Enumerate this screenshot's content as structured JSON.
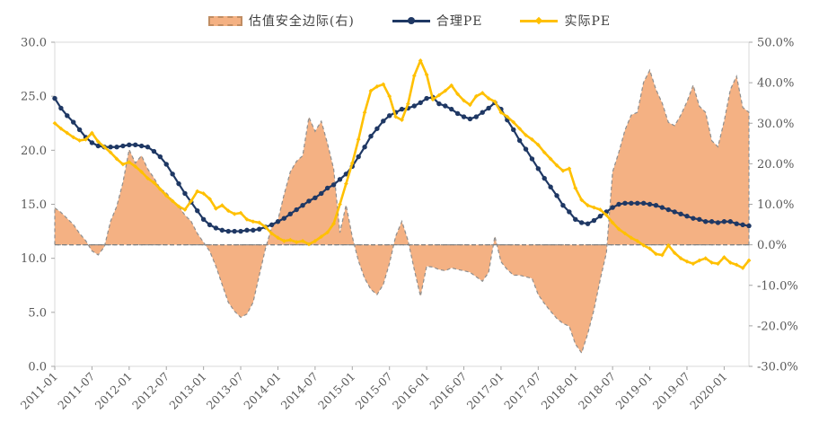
{
  "chart_data": {
    "type": "combo",
    "title": "",
    "x_start": "2011-01",
    "n_points": 113,
    "x_tick_labels": [
      "2011-01",
      "2011-07",
      "2012-01",
      "2012-07",
      "2013-01",
      "2013-07",
      "2014-01",
      "2014-07",
      "2015-01",
      "2015-07",
      "2016-01",
      "2016-07",
      "2017-01",
      "2017-07",
      "2018-01",
      "2018-07",
      "2019-01",
      "2019-07",
      "2020-01"
    ],
    "left_axis": {
      "min": 0,
      "max": 30,
      "tick_step": 5,
      "tick_labels": [
        "0.0",
        "5.0",
        "10.0",
        "15.0",
        "20.0",
        "25.0",
        "30.0"
      ]
    },
    "right_axis": {
      "min": -30,
      "max": 50,
      "tick_step": 10,
      "tick_labels": [
        "-30.0%",
        "-20.0%",
        "-10.0%",
        "0.0%",
        "10.0%",
        "20.0%",
        "30.0%",
        "40.0%",
        "50.0%"
      ]
    },
    "baseline_right_value": 0,
    "grid": "off",
    "legend_position": "top-center",
    "colors": {
      "area_fill": "#f4b183",
      "area_edge": "#8f8f8f",
      "reasonable_pe": "#1f3864",
      "actual_pe": "#ffc000",
      "axis_text": "#595959",
      "axis_line": "#d9d9d9",
      "tick": "#a6a6a6",
      "baseline": "#808080"
    },
    "series": [
      {
        "name": "估值安全边际(右)",
        "type": "area",
        "axis": "right",
        "marker": "none",
        "values": [
          9.1,
          8.0,
          6.5,
          5.0,
          2.8,
          1.0,
          -1.5,
          -2.5,
          -0.5,
          5.8,
          9.5,
          15.4,
          23.5,
          20.2,
          22.0,
          18.7,
          16.5,
          13.9,
          12.8,
          10.9,
          9.5,
          7.3,
          5.8,
          2.8,
          0.6,
          -1.6,
          -5.3,
          -9.8,
          -14.2,
          -16.4,
          -17.9,
          -17.1,
          -14.2,
          -7.5,
          -0.9,
          4.3,
          6.1,
          12.4,
          18.0,
          20.6,
          22.0,
          31.5,
          28.0,
          30.5,
          25.0,
          18.7,
          3.0,
          9.8,
          2.0,
          -4.0,
          -8.3,
          -11.0,
          -12.3,
          -9.8,
          -4.6,
          2.1,
          5.8,
          1.0,
          -6.1,
          -12.7,
          -5.3,
          -5.5,
          -6.1,
          -6.4,
          -5.7,
          -6.1,
          -6.4,
          -6.8,
          -7.9,
          -9.0,
          -6.8,
          2.1,
          -4.2,
          -6.1,
          -7.5,
          -7.5,
          -7.9,
          -8.3,
          -12.3,
          -14.5,
          -16.4,
          -18.2,
          -19.4,
          -20.1,
          -24.5,
          -26.7,
          -21.9,
          -16.0,
          -8.6,
          -2.0,
          18.0,
          22.8,
          28.3,
          32.0,
          32.7,
          40.1,
          43.1,
          38.3,
          35.0,
          30.2,
          29.4,
          32.0,
          35.3,
          39.4,
          34.2,
          32.7,
          25.7,
          24.2,
          30.5,
          38.3,
          41.6,
          33.9,
          32.7
        ]
      },
      {
        "name": "合理PE",
        "type": "line",
        "axis": "left",
        "marker": "circle",
        "values": [
          24.8,
          23.9,
          23.2,
          22.6,
          21.9,
          21.2,
          20.7,
          20.4,
          20.3,
          20.3,
          20.3,
          20.4,
          20.5,
          20.5,
          20.4,
          20.3,
          19.9,
          19.4,
          18.7,
          17.8,
          16.9,
          16.0,
          15.2,
          14.4,
          13.6,
          13.1,
          12.8,
          12.6,
          12.5,
          12.5,
          12.5,
          12.6,
          12.6,
          12.7,
          12.9,
          13.1,
          13.4,
          13.7,
          14.1,
          14.5,
          14.9,
          15.3,
          15.6,
          16.0,
          16.5,
          16.8,
          17.3,
          17.8,
          18.5,
          19.4,
          20.3,
          21.3,
          22.0,
          22.7,
          23.2,
          23.5,
          23.8,
          23.9,
          24.1,
          24.4,
          24.8,
          24.9,
          24.3,
          24.1,
          23.8,
          23.4,
          23.1,
          22.9,
          23.1,
          23.5,
          23.9,
          24.4,
          23.8,
          22.8,
          21.9,
          20.9,
          20.1,
          19.2,
          18.3,
          17.4,
          16.6,
          15.8,
          14.9,
          14.3,
          13.6,
          13.3,
          13.2,
          13.5,
          13.9,
          14.3,
          14.7,
          15.0,
          15.1,
          15.1,
          15.1,
          15.1,
          15.0,
          14.9,
          14.7,
          14.5,
          14.3,
          14.1,
          13.9,
          13.7,
          13.6,
          13.4,
          13.4,
          13.3,
          13.4,
          13.4,
          13.2,
          13.1,
          13.0
        ]
      },
      {
        "name": "实际PE",
        "type": "line",
        "axis": "left",
        "marker": "diamond",
        "values": [
          22.5,
          22.0,
          21.6,
          21.2,
          20.9,
          21.0,
          21.6,
          20.8,
          20.3,
          19.8,
          19.2,
          18.7,
          18.9,
          18.5,
          18.0,
          17.4,
          17.0,
          16.4,
          15.8,
          15.3,
          14.8,
          14.5,
          15.3,
          16.2,
          16.0,
          15.5,
          14.6,
          14.9,
          14.4,
          14.1,
          14.2,
          13.6,
          13.4,
          13.3,
          12.9,
          12.3,
          11.9,
          11.6,
          11.7,
          11.5,
          11.6,
          11.3,
          11.6,
          12.0,
          12.4,
          13.2,
          15.0,
          16.9,
          18.8,
          21.0,
          23.5,
          25.5,
          25.9,
          26.1,
          25.0,
          23.1,
          22.8,
          24.3,
          26.9,
          28.3,
          27.0,
          24.7,
          25.1,
          25.5,
          26.0,
          25.2,
          24.6,
          24.2,
          25.0,
          25.3,
          24.8,
          24.5,
          23.5,
          23.1,
          22.6,
          22.0,
          21.4,
          21.0,
          20.5,
          19.8,
          19.2,
          18.6,
          18.1,
          18.3,
          16.5,
          15.4,
          14.9,
          14.7,
          14.5,
          14.0,
          13.3,
          12.7,
          12.3,
          11.9,
          11.6,
          11.2,
          10.9,
          10.4,
          10.3,
          11.2,
          10.5,
          10.0,
          9.7,
          9.5,
          9.8,
          10.0,
          9.6,
          9.5,
          10.1,
          9.6,
          9.4,
          9.1,
          9.8
        ]
      }
    ]
  }
}
